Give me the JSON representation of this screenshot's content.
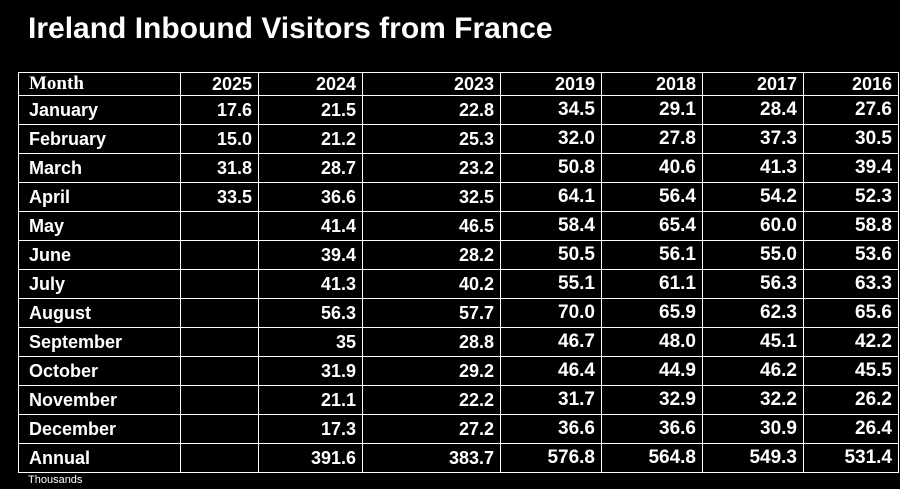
{
  "chart_data": {
    "type": "table",
    "title": "Ireland Inbound Visitors from France",
    "row_header_label": "Month",
    "columns": [
      "2025",
      "2024",
      "2023",
      "2019",
      "2018",
      "2017",
      "2016"
    ],
    "rows": [
      {
        "label": "January",
        "values": [
          "17.6",
          "21.5",
          "22.8",
          "34.5",
          "29.1",
          "28.4",
          "27.6"
        ]
      },
      {
        "label": "February",
        "values": [
          "15.0",
          "21.2",
          "25.3",
          "32.0",
          "27.8",
          "37.3",
          "30.5"
        ]
      },
      {
        "label": "March",
        "values": [
          "31.8",
          "28.7",
          "23.2",
          "50.8",
          "40.6",
          "41.3",
          "39.4"
        ]
      },
      {
        "label": "April",
        "values": [
          "33.5",
          "36.6",
          "32.5",
          "64.1",
          "56.4",
          "54.2",
          "52.3"
        ]
      },
      {
        "label": "May",
        "values": [
          "",
          "41.4",
          "46.5",
          "58.4",
          "65.4",
          "60.0",
          "58.8"
        ]
      },
      {
        "label": "June",
        "values": [
          "",
          "39.4",
          "28.2",
          "50.5",
          "56.1",
          "55.0",
          "53.6"
        ]
      },
      {
        "label": "July",
        "values": [
          "",
          "41.3",
          "40.2",
          "55.1",
          "61.1",
          "56.3",
          "63.3"
        ]
      },
      {
        "label": "August",
        "values": [
          "",
          "56.3",
          "57.7",
          "70.0",
          "65.9",
          "62.3",
          "65.6"
        ]
      },
      {
        "label": "September",
        "values": [
          "",
          "35",
          "28.8",
          "46.7",
          "48.0",
          "45.1",
          "42.2"
        ]
      },
      {
        "label": "October",
        "values": [
          "",
          "31.9",
          "29.2",
          "46.4",
          "44.9",
          "46.2",
          "45.5"
        ]
      },
      {
        "label": "November",
        "values": [
          "",
          "21.1",
          "22.2",
          "31.7",
          "32.9",
          "32.2",
          "26.2"
        ]
      },
      {
        "label": "December",
        "values": [
          "",
          "17.3",
          "27.2",
          "36.6",
          "36.6",
          "30.9",
          "26.4"
        ]
      },
      {
        "label": "Annual",
        "values": [
          "",
          "391.6",
          "383.7",
          "576.8",
          "564.8",
          "549.3",
          "531.4"
        ]
      }
    ],
    "units_note": "Thousands"
  },
  "colors": {
    "background": "#000000",
    "text": "#ffffff",
    "grid_lines": "#ffffff"
  }
}
